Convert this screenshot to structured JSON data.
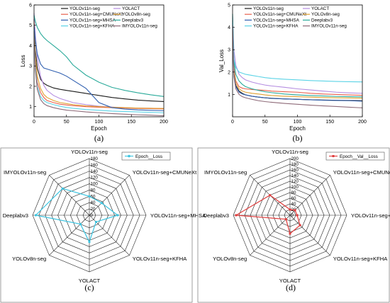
{
  "chart_data": [
    {
      "type": "line",
      "panel_label": "(a)",
      "xlabel": "Epoch",
      "ylabel": "Loss",
      "xlim": [
        0,
        200
      ],
      "ylim": [
        0.5,
        6
      ],
      "xticks": [
        0,
        50,
        100,
        150,
        200
      ],
      "yticks": [
        1,
        2,
        3,
        4,
        5,
        6
      ],
      "grid": false,
      "legend": "top-right, two columns",
      "x": [
        0,
        2,
        5,
        10,
        15,
        20,
        30,
        40,
        50,
        60,
        80,
        100,
        120,
        140,
        160,
        180,
        200
      ],
      "series": [
        {
          "name": "YOLOv11n-seg",
          "color": "#1a1a1a",
          "values": [
            5.3,
            3.8,
            2.9,
            2.35,
            2.15,
            2.05,
            1.92,
            1.85,
            1.8,
            1.75,
            1.65,
            1.55,
            1.45,
            1.38,
            1.32,
            1.28,
            1.25
          ]
        },
        {
          "name": "YOLACT",
          "color": "#b48ce0",
          "values": [
            5.6,
            4.5,
            3.4,
            2.5,
            2.05,
            1.8,
            1.55,
            1.4,
            1.3,
            1.2,
            1.1,
            1.02,
            0.98,
            0.95,
            0.93,
            0.92,
            0.9
          ]
        },
        {
          "name": "YOLOv11n-seg+CMUNeXt",
          "color": "#e8604c",
          "values": [
            4.9,
            3.2,
            2.2,
            1.7,
            1.45,
            1.3,
            1.2,
            1.12,
            1.08,
            1.05,
            1.0,
            0.97,
            0.95,
            0.93,
            0.91,
            0.9,
            0.89
          ]
        },
        {
          "name": "YOLOv8n-seg",
          "color": "#e0a030",
          "values": [
            5.2,
            3.5,
            2.5,
            1.9,
            1.6,
            1.45,
            1.3,
            1.2,
            1.15,
            1.1,
            1.04,
            1.0,
            0.97,
            0.95,
            0.93,
            0.92,
            0.91
          ]
        },
        {
          "name": "YOLOv11n-seg+MHSA",
          "color": "#2f5fb0",
          "values": [
            5.0,
            4.3,
            3.6,
            3.1,
            2.9,
            2.85,
            2.75,
            2.65,
            2.5,
            2.3,
            1.9,
            1.2,
            0.95,
            0.88,
            0.84,
            0.82,
            0.8
          ]
        },
        {
          "name": "Deeplabv3",
          "color": "#2aaa9a",
          "values": [
            5.5,
            5.2,
            4.9,
            4.6,
            4.4,
            4.25,
            4.0,
            3.75,
            3.45,
            3.05,
            2.55,
            2.2,
            1.95,
            1.8,
            1.68,
            1.58,
            1.5
          ]
        },
        {
          "name": "YOLOv11n-seg+KFHA",
          "color": "#5bd3e6",
          "values": [
            4.8,
            3.0,
            2.0,
            1.5,
            1.3,
            1.2,
            1.1,
            1.02,
            0.96,
            0.92,
            0.86,
            0.82,
            0.78,
            0.76,
            0.74,
            0.72,
            0.7
          ]
        },
        {
          "name": "IMYOLOv11n-seg",
          "color": "#8e6a78",
          "values": [
            4.7,
            2.8,
            1.85,
            1.35,
            1.15,
            1.05,
            0.95,
            0.88,
            0.83,
            0.8,
            0.74,
            0.7,
            0.66,
            0.63,
            0.6,
            0.58,
            0.55
          ]
        }
      ]
    },
    {
      "type": "line",
      "panel_label": "(b)",
      "xlabel": "Epoch",
      "ylabel": "Val_Loss",
      "xlim": [
        0,
        200
      ],
      "ylim": [
        0,
        5
      ],
      "xticks": [
        0,
        50,
        100,
        150,
        200
      ],
      "yticks": [
        1,
        2,
        3,
        4,
        5
      ],
      "grid": false,
      "legend": "top-right, two columns",
      "x": [
        0,
        2,
        5,
        10,
        15,
        20,
        30,
        40,
        50,
        60,
        80,
        100,
        120,
        140,
        160,
        180,
        200
      ],
      "series": [
        {
          "name": "YOLOv11n-seg",
          "color": "#1a1a1a",
          "values": [
            4.3,
            2.0,
            1.4,
            1.15,
            1.05,
            0.98,
            0.92,
            0.88,
            0.85,
            0.83,
            0.8,
            0.78,
            0.76,
            0.75,
            0.74,
            0.73,
            0.72
          ]
        },
        {
          "name": "YOLACT",
          "color": "#b48ce0",
          "values": [
            4.5,
            3.0,
            2.3,
            1.9,
            1.75,
            1.65,
            1.55,
            1.48,
            1.42,
            1.38,
            1.32,
            1.25,
            1.2,
            1.15,
            1.1,
            1.07,
            1.05
          ]
        },
        {
          "name": "YOLOv11n-seg+CMUNeXt",
          "color": "#e8604c",
          "values": [
            4.4,
            2.2,
            1.6,
            1.35,
            1.28,
            1.25,
            1.22,
            1.2,
            1.18,
            1.15,
            1.12,
            1.1,
            1.05,
            1.02,
            1.0,
            0.98,
            0.96
          ]
        },
        {
          "name": "YOLOv8n-seg",
          "color": "#e0a030",
          "values": [
            4.3,
            2.1,
            1.5,
            1.25,
            1.15,
            1.1,
            1.05,
            1.02,
            0.98,
            0.95,
            0.92,
            0.9,
            0.88,
            0.86,
            0.85,
            0.84,
            0.83
          ]
        },
        {
          "name": "YOLOv11n-seg+MHSA",
          "color": "#2f5fb0",
          "values": [
            4.2,
            1.9,
            1.35,
            1.1,
            1.02,
            0.98,
            0.92,
            0.88,
            0.85,
            0.82,
            0.8,
            0.78,
            0.76,
            0.74,
            0.73,
            0.72,
            0.7
          ]
        },
        {
          "name": "Deeplabv3",
          "color": "#2aaa9a",
          "values": [
            4.6,
            2.5,
            1.9,
            1.6,
            1.45,
            1.35,
            1.25,
            1.18,
            1.12,
            1.08,
            1.02,
            0.98,
            0.95,
            0.93,
            0.91,
            0.9,
            0.89
          ]
        },
        {
          "name": "YOLOv11n-seg+KFHA",
          "color": "#5bd3e6",
          "values": [
            4.4,
            2.6,
            2.2,
            2.0,
            1.95,
            1.9,
            1.85,
            1.8,
            1.75,
            1.72,
            1.68,
            1.65,
            1.62,
            1.6,
            1.58,
            1.57,
            1.56
          ]
        },
        {
          "name": "IMYOLOv11n-seg",
          "color": "#8e6a78",
          "values": [
            4.1,
            1.8,
            1.25,
            1.0,
            0.9,
            0.85,
            0.78,
            0.72,
            0.68,
            0.65,
            0.6,
            0.56,
            0.52,
            0.49,
            0.46,
            0.43,
            0.4
          ]
        }
      ]
    },
    {
      "type": "radar",
      "panel_label": "(c)",
      "legend": "top-right",
      "rlim": [
        0,
        180
      ],
      "rticks": [
        "0",
        "20",
        "40",
        "60",
        "80",
        "100",
        "120",
        "140",
        "160",
        "180"
      ],
      "categories": [
        "YOLOv11n-seg",
        "YOLOv11n-seg+CMUNeXt",
        "YOLOv11n-seg+MHSA",
        "YOLOv11n-seg+KFHA",
        "YOLACT",
        "YOLOv8n-seg",
        "Deeplabv3",
        "IMYOLOv11n-seg"
      ],
      "series": [
        {
          "name": "Epoch__Loss",
          "color": "#3cc4e0",
          "values": [
            60,
            55,
            90,
            30,
            85,
            40,
            170,
            120
          ]
        }
      ]
    },
    {
      "type": "radar",
      "panel_label": "(d)",
      "legend": "top-right",
      "rlim": [
        0,
        200
      ],
      "rticks": [
        "0",
        "20",
        "40",
        "60",
        "80",
        "100",
        "120",
        "140",
        "160",
        "180",
        "200"
      ],
      "categories": [
        "YOLOv11n-seg",
        "YOLOv11n-seg+CMUNeXt",
        "YOLOv11n-seg+MHSA",
        "YOLOv11n-seg+KFHA",
        "YOLACT",
        "YOLOv8n-seg",
        "Deeplabv3",
        "IMYOLOv11n-seg"
      ],
      "series": [
        {
          "name": "Epoch__Val__Loss",
          "color": "#e03c3c",
          "values": [
            20,
            25,
            25,
            50,
            65,
            20,
            190,
            100
          ]
        }
      ]
    }
  ]
}
